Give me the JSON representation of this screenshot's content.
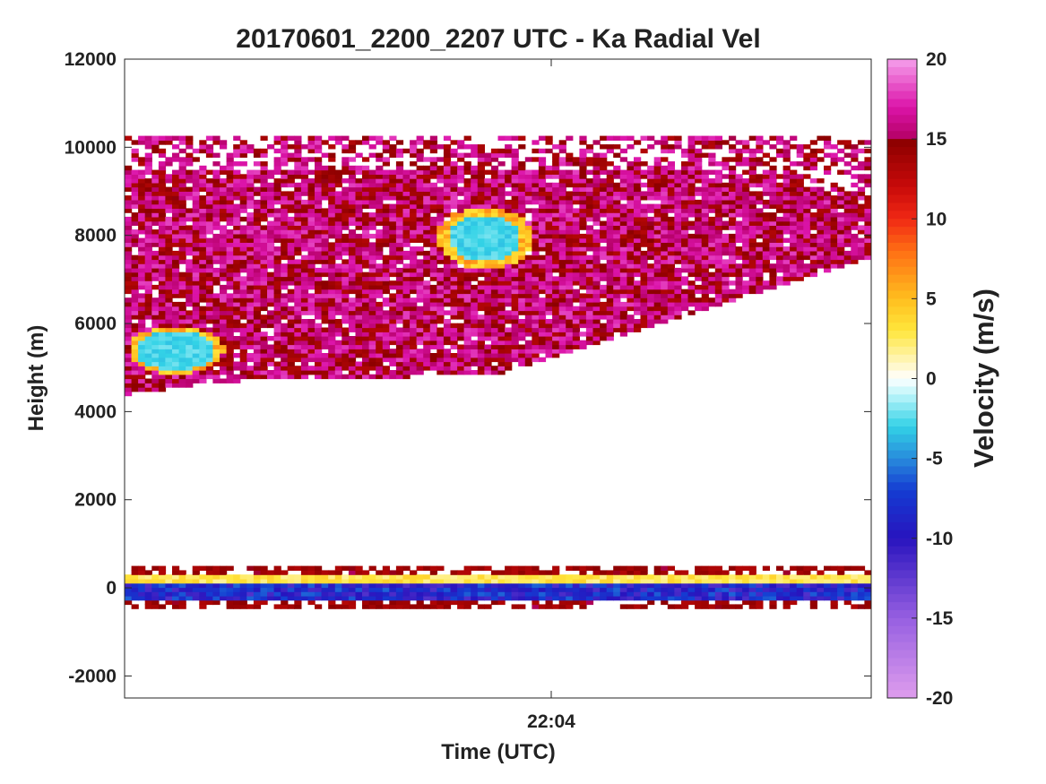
{
  "chart_data": {
    "type": "heatmap",
    "title": "20170601_2200_2207 UTC - Ka Radial Vel",
    "xlabel": "Time (UTC)",
    "ylabel": "Height (m)",
    "ylim": [
      -2500,
      12000
    ],
    "xlim": [
      "22:00",
      "22:07"
    ],
    "y_ticks": [
      "-2000",
      "0",
      "2000",
      "4000",
      "6000",
      "8000",
      "10000",
      "12000"
    ],
    "y_tick_values": [
      -2000,
      0,
      2000,
      4000,
      6000,
      8000,
      10000,
      12000
    ],
    "x_ticks": [
      "22:04"
    ],
    "x_tick_values": [
      4.0
    ],
    "grid": false,
    "colorbar": {
      "label": "Velocity (m/s)",
      "range": [
        -20,
        20
      ],
      "ticks": [
        "20",
        "15",
        "10",
        "5",
        "0",
        "-5",
        "-10",
        "-15",
        "-20"
      ],
      "tick_values": [
        20,
        15,
        10,
        5,
        0,
        -5,
        -10,
        -15,
        -20
      ]
    },
    "echo_regions": [
      {
        "name": "upper echo layer",
        "time_min": [
          0.0,
          7.0
        ],
        "height_m": [
          4300,
          10200
        ],
        "typical_velocity_ms": [
          13,
          18
        ]
      },
      {
        "name": "negative-velocity patch",
        "time_min": [
          0.0,
          0.9
        ],
        "height_m": [
          4800,
          5900
        ],
        "typical_velocity_ms": [
          -3,
          -1
        ]
      },
      {
        "name": "negative-velocity patch",
        "time_min": [
          2.9,
          3.8
        ],
        "height_m": [
          7200,
          8600
        ],
        "typical_velocity_ms": [
          -3,
          -1
        ]
      },
      {
        "name": "surface clutter band",
        "time_min": [
          0.0,
          7.0
        ],
        "height_m": [
          -500,
          400
        ],
        "typical_velocity_ms": [
          -10,
          3
        ]
      }
    ]
  }
}
